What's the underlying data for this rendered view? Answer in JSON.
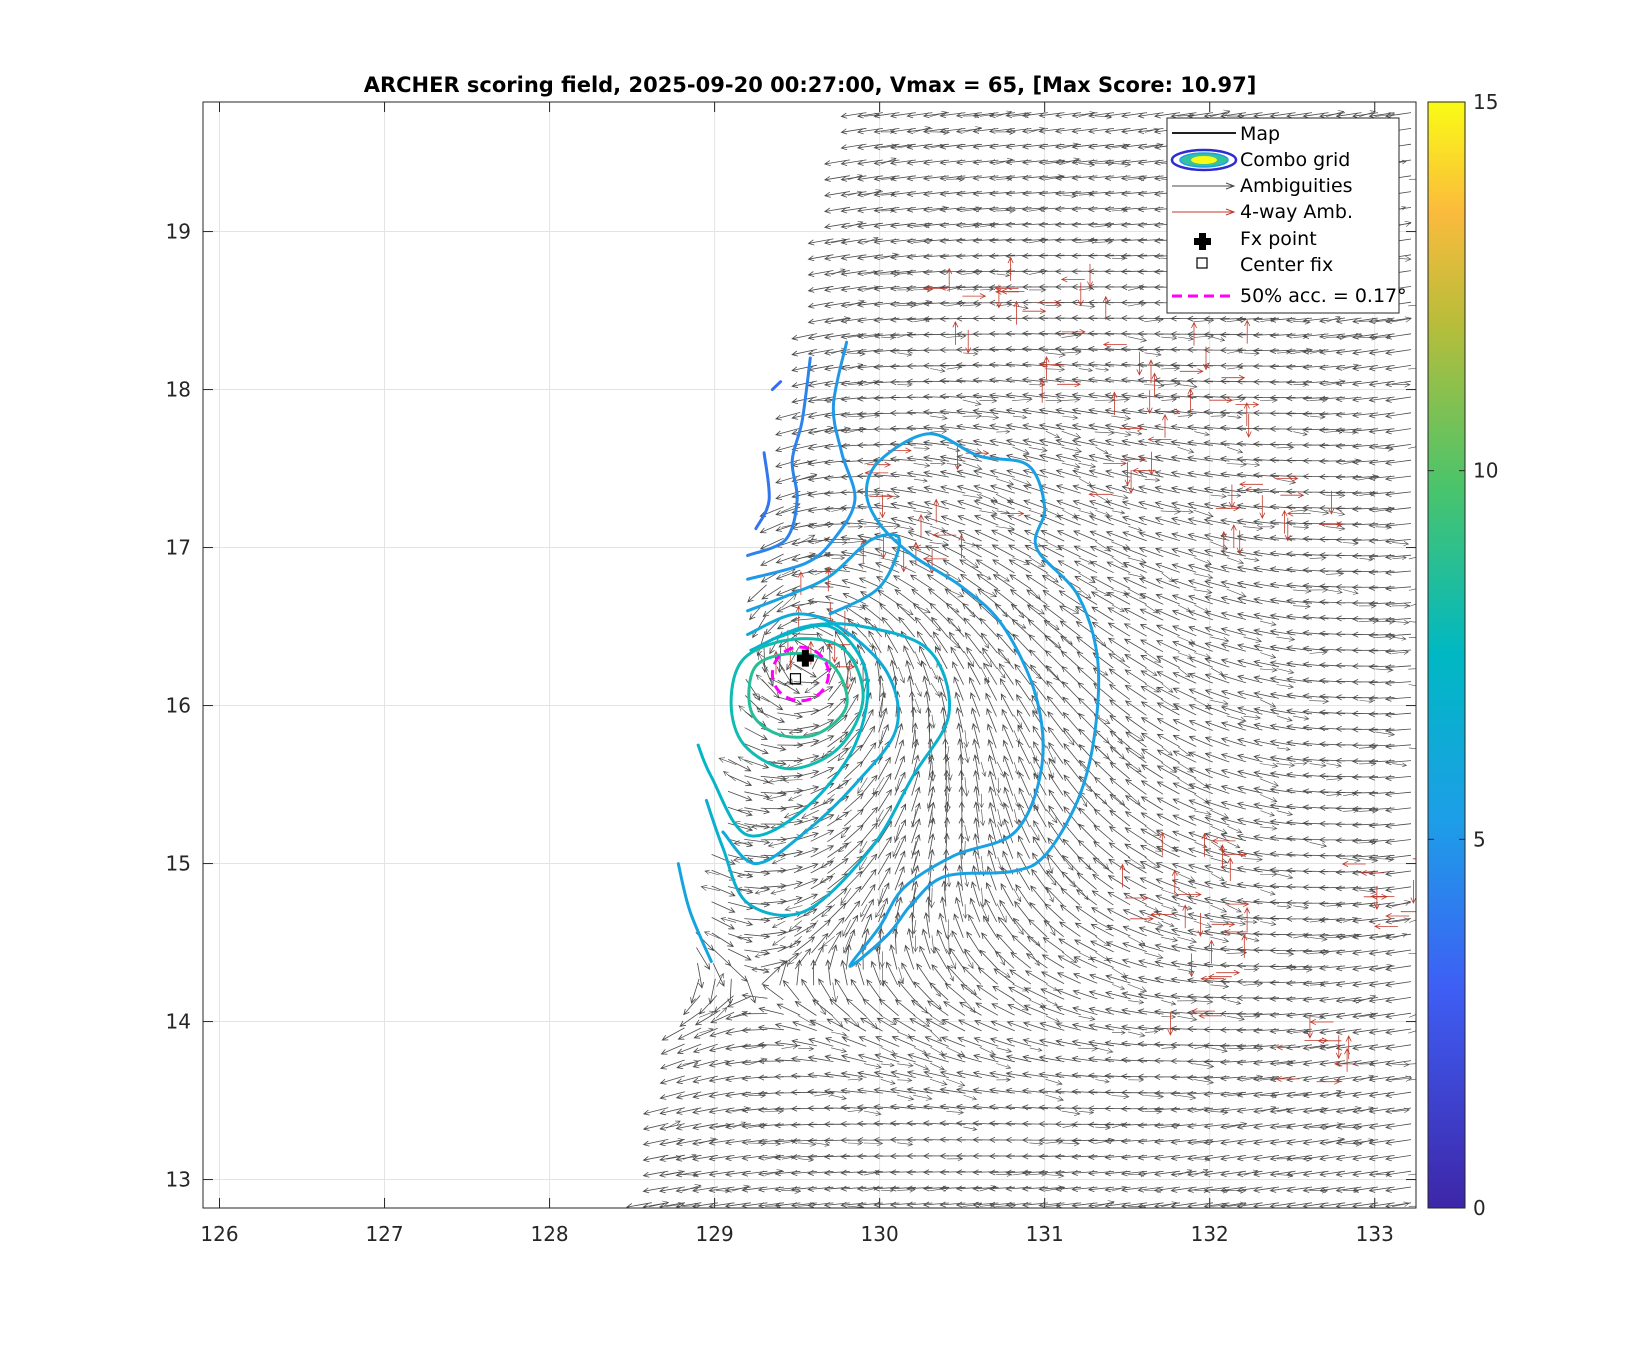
{
  "chart_data": {
    "type": "contour",
    "title": "ARCHER scoring field, 2025-09-20 00:27:00, Vmax = 65, [Max Score: 10.97]",
    "xlabel": "",
    "ylabel": "",
    "xlim": [
      125.9,
      133.25
    ],
    "ylim": [
      12.82,
      19.82
    ],
    "xticks": [
      126,
      127,
      128,
      129,
      130,
      131,
      132,
      133
    ],
    "yticks": [
      13,
      14,
      15,
      16,
      17,
      18,
      19
    ],
    "grid": true,
    "colorbar": {
      "min": 0,
      "max": 15,
      "ticks": [
        0,
        5,
        10,
        15
      ],
      "colormap": "parula"
    },
    "fx_point": {
      "x": 129.55,
      "y": 16.3
    },
    "center_fix": {
      "x": 129.49,
      "y": 16.17
    },
    "accuracy_circle": {
      "x": 129.52,
      "y": 16.2,
      "radius": 0.17
    },
    "swath": {
      "polygon": [
        [
          128.58,
          12.82
        ],
        [
          129.85,
          19.82
        ],
        [
          133.25,
          19.82
        ],
        [
          133.25,
          12.82
        ]
      ]
    },
    "contours": [
      {
        "level": 3.5,
        "points": [
          [
            129.4,
            18.05
          ],
          [
            129.35,
            18.0
          ]
        ]
      },
      {
        "level": 3.8,
        "points": [
          [
            129.3,
            17.6
          ],
          [
            129.33,
            17.3
          ],
          [
            129.25,
            17.12
          ]
        ]
      },
      {
        "level": 4.3,
        "points": [
          [
            129.58,
            18.2
          ],
          [
            129.53,
            17.8
          ],
          [
            129.47,
            17.55
          ],
          [
            129.5,
            17.3
          ],
          [
            129.43,
            17.05
          ],
          [
            129.2,
            16.95
          ]
        ]
      },
      {
        "level": 5.0,
        "points": [
          [
            129.8,
            18.3
          ],
          [
            129.72,
            17.9
          ],
          [
            129.77,
            17.6
          ],
          [
            129.85,
            17.3
          ],
          [
            129.72,
            17.05
          ],
          [
            129.55,
            16.9
          ],
          [
            129.2,
            16.8
          ]
        ]
      },
      {
        "level": 5.6,
        "points": [
          [
            129.2,
            16.6
          ],
          [
            129.45,
            16.7
          ],
          [
            129.7,
            16.82
          ],
          [
            129.95,
            17.05
          ],
          [
            130.12,
            17.05
          ],
          [
            130.0,
            16.75
          ],
          [
            129.7,
            16.58
          ]
        ]
      },
      {
        "level": 5.5,
        "closed": true,
        "points": [
          [
            130.0,
            17.55
          ],
          [
            130.3,
            17.72
          ],
          [
            130.6,
            17.58
          ],
          [
            130.9,
            17.52
          ],
          [
            131.0,
            17.25
          ],
          [
            130.95,
            17.0
          ],
          [
            131.2,
            16.7
          ],
          [
            131.32,
            16.3
          ],
          [
            131.3,
            15.8
          ],
          [
            131.2,
            15.4
          ],
          [
            131.0,
            15.05
          ],
          [
            130.8,
            14.95
          ],
          [
            130.4,
            14.92
          ],
          [
            130.2,
            14.75
          ],
          [
            130.05,
            14.55
          ],
          [
            129.82,
            14.35
          ],
          [
            130.0,
            14.6
          ],
          [
            130.15,
            14.85
          ],
          [
            130.45,
            15.05
          ],
          [
            130.82,
            15.2
          ],
          [
            130.98,
            15.6
          ],
          [
            130.95,
            16.05
          ],
          [
            130.75,
            16.5
          ],
          [
            130.5,
            16.75
          ],
          [
            130.2,
            16.95
          ],
          [
            130.0,
            17.15
          ],
          [
            129.92,
            17.35
          ]
        ]
      },
      {
        "level": 6.3,
        "points": [
          [
            129.2,
            16.45
          ],
          [
            129.5,
            16.58
          ],
          [
            129.78,
            16.48
          ],
          [
            130.05,
            16.2
          ],
          [
            130.1,
            15.85
          ],
          [
            129.85,
            15.5
          ],
          [
            129.55,
            15.2
          ],
          [
            129.25,
            15.0
          ],
          [
            129.05,
            15.2
          ]
        ]
      },
      {
        "level": 6.8,
        "points": [
          [
            129.22,
            16.35
          ],
          [
            129.55,
            16.5
          ],
          [
            129.9,
            16.5
          ],
          [
            130.3,
            16.35
          ],
          [
            130.42,
            15.95
          ],
          [
            130.2,
            15.55
          ],
          [
            129.95,
            15.1
          ],
          [
            129.55,
            14.7
          ],
          [
            129.2,
            14.75
          ],
          [
            129.05,
            15.1
          ],
          [
            128.95,
            15.4
          ]
        ]
      },
      {
        "level": 7.2,
        "points": [
          [
            129.35,
            16.42
          ],
          [
            129.7,
            16.5
          ],
          [
            129.92,
            16.2
          ],
          [
            129.85,
            15.75
          ],
          [
            129.55,
            15.35
          ],
          [
            129.2,
            15.18
          ],
          [
            128.98,
            15.55
          ],
          [
            128.9,
            15.75
          ]
        ]
      },
      {
        "level": 8.0,
        "closed": true,
        "points": [
          [
            129.18,
            16.3
          ],
          [
            129.48,
            16.42
          ],
          [
            129.78,
            16.36
          ],
          [
            129.9,
            16.05
          ],
          [
            129.75,
            15.73
          ],
          [
            129.45,
            15.6
          ],
          [
            129.18,
            15.75
          ],
          [
            129.1,
            16.02
          ]
        ]
      },
      {
        "level": 8.6,
        "closed": true,
        "points": [
          [
            129.25,
            16.25
          ],
          [
            129.5,
            16.33
          ],
          [
            129.72,
            16.25
          ],
          [
            129.8,
            16.0
          ],
          [
            129.62,
            15.82
          ],
          [
            129.38,
            15.82
          ],
          [
            129.22,
            15.97
          ]
        ]
      },
      {
        "level": 5.8,
        "points": [
          [
            128.78,
            15.0
          ],
          [
            128.85,
            14.7
          ],
          [
            128.98,
            14.38
          ]
        ]
      }
    ],
    "legend": {
      "position": "top-right",
      "entries": [
        "Map",
        "Combo grid",
        "Ambiguities",
        "4-way Amb.",
        "Fx point",
        "Center fix",
        "50% acc. = 0.17°"
      ]
    },
    "colors": {
      "ambiguity": "#4a4a4a",
      "four_way": "#c0392b",
      "fx_point": "#000000",
      "accuracy_circle": "#ff00ff",
      "grid": "#e3e3e3",
      "axis": "#262626"
    }
  }
}
